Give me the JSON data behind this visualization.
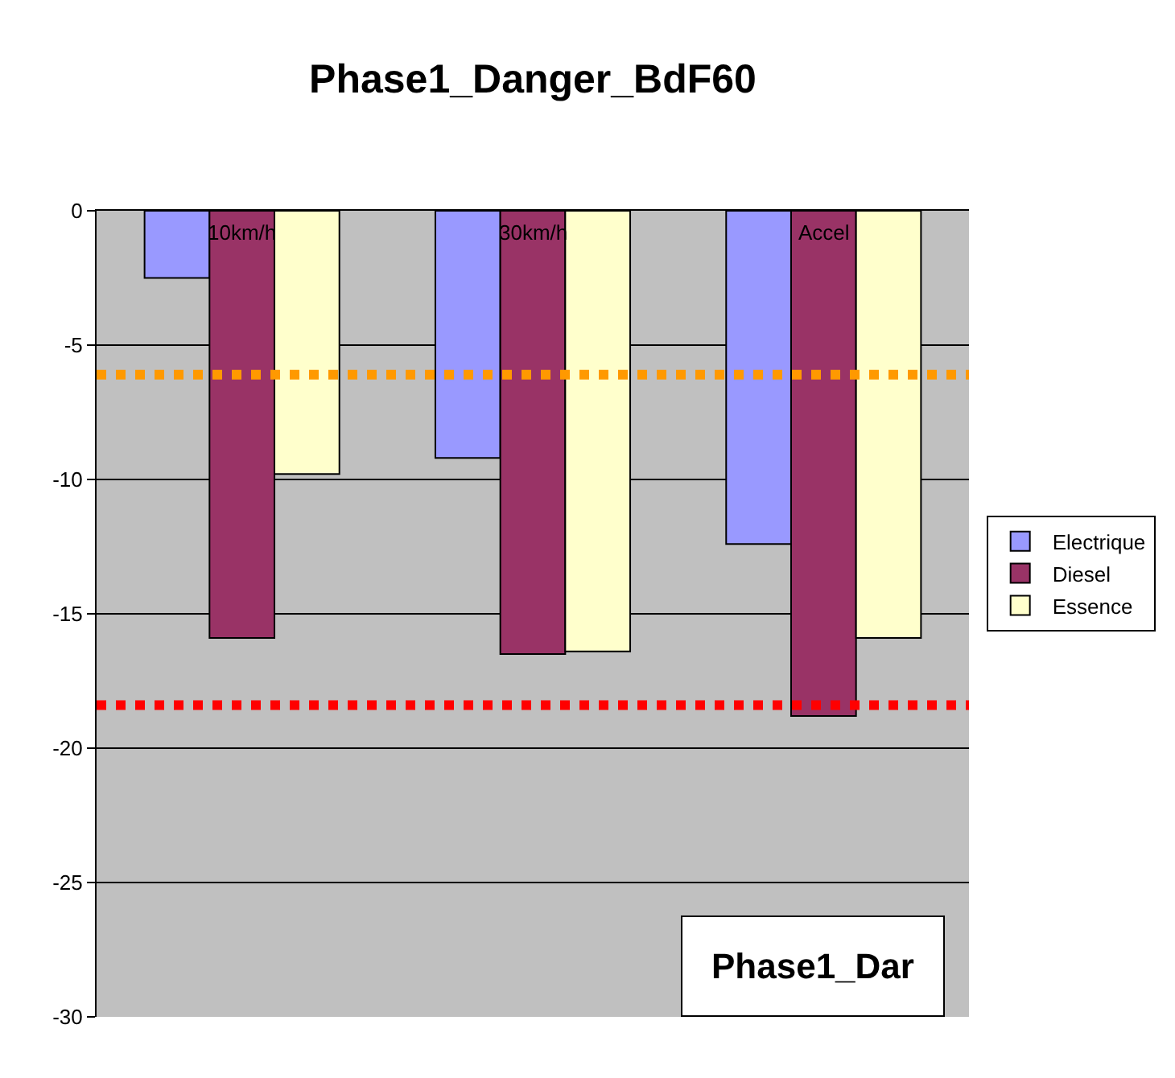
{
  "chart_data": {
    "type": "bar",
    "title": "Phase1_Danger_BdF60",
    "categories": [
      "10km/h",
      "30km/h",
      "Accel"
    ],
    "series": [
      {
        "name": "Electrique",
        "color": "#9999ff",
        "values": [
          -2.5,
          -9.2,
          -12.4
        ]
      },
      {
        "name": "Diesel",
        "color": "#993366",
        "values": [
          -15.9,
          -16.5,
          -18.8
        ]
      },
      {
        "name": "Essence",
        "color": "#ffffcc",
        "values": [
          -9.8,
          -16.4,
          -15.9
        ]
      }
    ],
    "ylim": [
      -30,
      0
    ],
    "yticks": [
      -30,
      -25,
      -20,
      -15,
      -10,
      -5,
      0
    ],
    "ref_lines": [
      {
        "axis": "y",
        "value": -6.1,
        "color": "#ff9900",
        "line_style": "dotted"
      },
      {
        "axis": "y",
        "value": -18.4,
        "color": "#ff0000",
        "line_style": "dotted"
      }
    ],
    "annotations": [
      "Phase1_Dar"
    ],
    "grid": "y",
    "legend": "right"
  }
}
